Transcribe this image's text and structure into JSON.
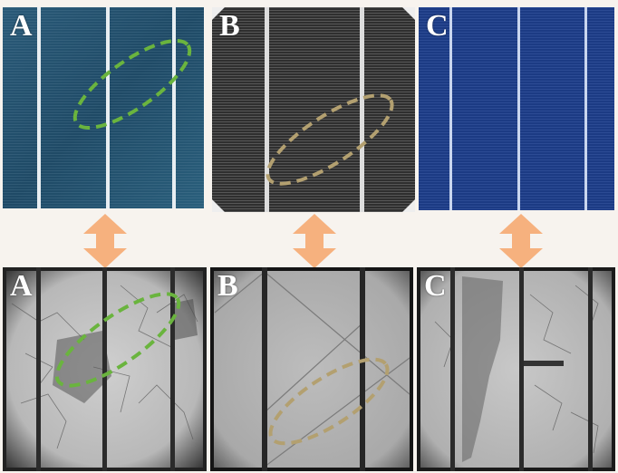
{
  "panels": {
    "top_a": {
      "label": "A"
    },
    "top_b": {
      "label": "B"
    },
    "top_c": {
      "label": "C"
    },
    "bottom_a": {
      "label": "A"
    },
    "bottom_b": {
      "label": "B"
    },
    "bottom_c": {
      "label": "C"
    }
  },
  "colors": {
    "background": "#f7f3ee",
    "arrow": "#f6b17e",
    "highlight_a": "#6ab43e",
    "highlight_b": "#b3a070",
    "cell_a": "#1f4a6a",
    "cell_b": "#2f2f2f",
    "cell_c": "#1c3b84"
  },
  "icons": [
    "double-arrow-icon"
  ]
}
